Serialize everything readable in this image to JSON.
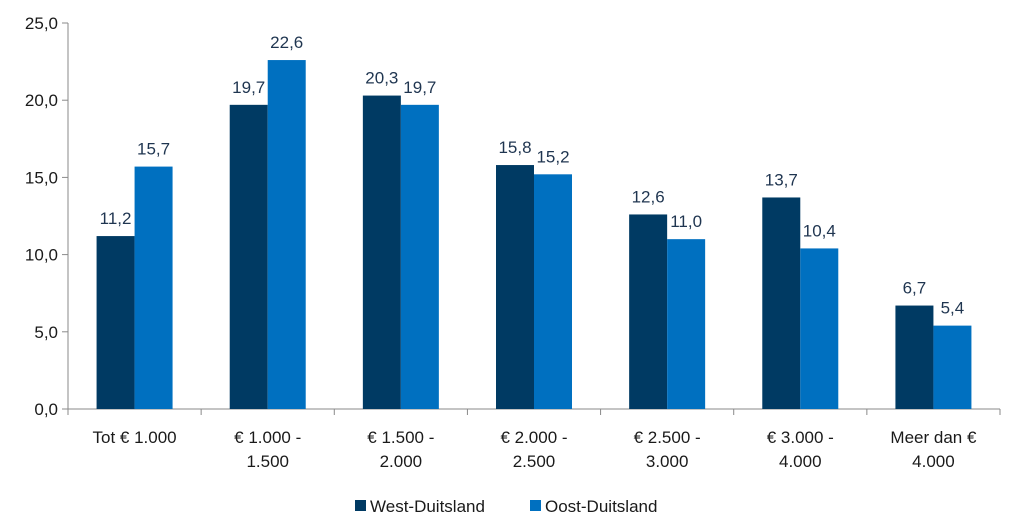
{
  "chart_data": {
    "type": "bar",
    "title": "",
    "xlabel": "",
    "ylabel": "",
    "ylim": [
      0,
      25
    ],
    "yticks": [
      "0,0",
      "5,0",
      "10,0",
      "15,0",
      "20,0",
      "25,0"
    ],
    "categories": [
      [
        "Tot € 1.000"
      ],
      [
        "€ 1.000 -",
        "1.500"
      ],
      [
        "€ 1.500 -",
        "2.000"
      ],
      [
        "€ 2.000 -",
        "2.500"
      ],
      [
        "€ 2.500 -",
        "3.000"
      ],
      [
        "€ 3.000 -",
        "4.000"
      ],
      [
        "Meer dan €",
        "4.000"
      ]
    ],
    "series": [
      {
        "name": "West-Duitsland",
        "color": "#003a63",
        "values": [
          11.2,
          19.7,
          20.3,
          15.8,
          12.6,
          13.7,
          6.7
        ],
        "labels": [
          "11,2",
          "19,7",
          "20,3",
          "15,8",
          "12,6",
          "13,7",
          "6,7"
        ]
      },
      {
        "name": "Oost-Duitsland",
        "color": "#0070c0",
        "values": [
          15.7,
          22.6,
          19.7,
          15.2,
          11.0,
          10.4,
          5.4
        ],
        "labels": [
          "15,7",
          "22,6",
          "19,7",
          "15,2",
          "11,0",
          "10,4",
          "5,4"
        ]
      }
    ],
    "grid": false,
    "legend_position": "bottom"
  }
}
